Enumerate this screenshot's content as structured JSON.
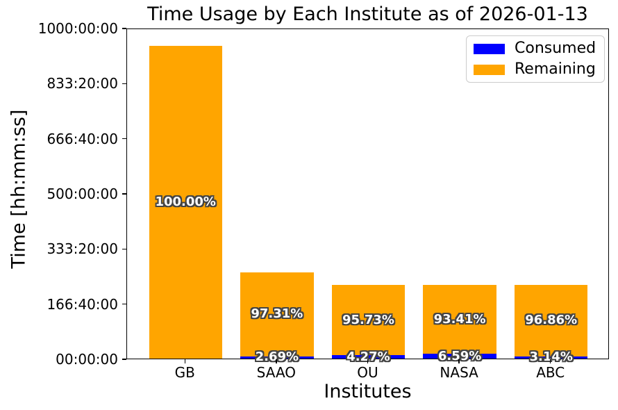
{
  "chart_data": {
    "type": "bar",
    "stacked": true,
    "title": "Time Usage by Each Institute as of 2026-01-13",
    "xlabel": "Institutes",
    "ylabel": "Time [hh:mm:ss]",
    "categories": [
      "GB",
      "SAAO",
      "OU",
      "NASA",
      "ABC"
    ],
    "yticks_bottom_to_top": [
      "00:00:00",
      "166:40:00",
      "333:20:00",
      "500:00:00",
      "666:40:00",
      "833:20:00",
      "1000:00:00"
    ],
    "ylim_hours": [
      0,
      1000
    ],
    "grid": false,
    "legend_position": "upper right",
    "series": [
      {
        "name": "Consumed",
        "color": "#0000ff",
        "values_hours": [
          0,
          7.0,
          9.5,
          14.7,
          7.0
        ]
      },
      {
        "name": "Remaining",
        "color": "#ffa500",
        "values_hours": [
          945.0,
          253.5,
          213.2,
          208.0,
          215.7
        ]
      }
    ],
    "segment_labels": {
      "consumed": [
        "",
        "2.69%",
        "4.27%",
        "6.59%",
        "3.14%"
      ],
      "remaining": [
        "100.00%",
        "97.31%",
        "95.73%",
        "93.41%",
        "96.86%"
      ]
    },
    "label_text_color": "#ffffff",
    "label_outline_color": "#444444",
    "axis_color": "#000000",
    "background_color": "#ffffff"
  }
}
